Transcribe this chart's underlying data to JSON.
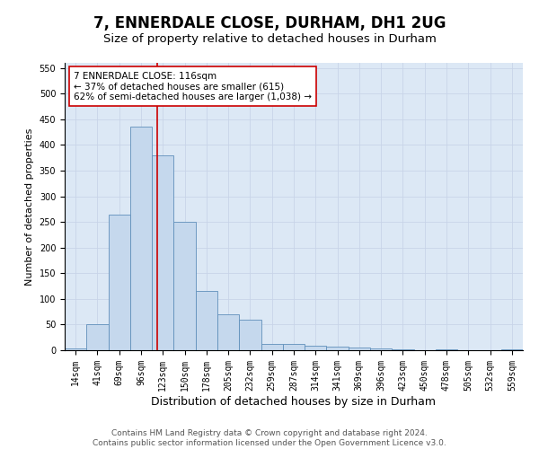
{
  "title1": "7, ENNERDALE CLOSE, DURHAM, DH1 2UG",
  "title2": "Size of property relative to detached houses in Durham",
  "xlabel": "Distribution of detached houses by size in Durham",
  "ylabel": "Number of detached properties",
  "bin_labels": [
    "14sqm",
    "41sqm",
    "69sqm",
    "96sqm",
    "123sqm",
    "150sqm",
    "178sqm",
    "205sqm",
    "232sqm",
    "259sqm",
    "287sqm",
    "314sqm",
    "341sqm",
    "369sqm",
    "396sqm",
    "423sqm",
    "450sqm",
    "478sqm",
    "505sqm",
    "532sqm",
    "559sqm"
  ],
  "bar_heights": [
    3,
    50,
    265,
    435,
    380,
    250,
    115,
    70,
    60,
    13,
    13,
    8,
    7,
    6,
    4,
    2,
    0,
    2,
    0,
    0,
    2
  ],
  "bar_color": "#c5d8ed",
  "bar_edgecolor": "#6090bb",
  "property_value_bar_index": 4,
  "vline_color": "#cc0000",
  "annotation_text": "7 ENNERDALE CLOSE: 116sqm\n← 37% of detached houses are smaller (615)\n62% of semi-detached houses are larger (1,038) →",
  "annotation_box_edgecolor": "#cc0000",
  "annotation_box_facecolor": "#ffffff",
  "ylim": [
    0,
    560
  ],
  "yticks": [
    0,
    50,
    100,
    150,
    200,
    250,
    300,
    350,
    400,
    450,
    500,
    550
  ],
  "grid_color": "#c8d4e8",
  "background_color": "#dce8f5",
  "footer1": "Contains HM Land Registry data © Crown copyright and database right 2024.",
  "footer2": "Contains public sector information licensed under the Open Government Licence v3.0.",
  "title1_fontsize": 12,
  "title2_fontsize": 9.5,
  "xlabel_fontsize": 9,
  "ylabel_fontsize": 8,
  "tick_fontsize": 7,
  "annotation_fontsize": 7.5,
  "footer_fontsize": 6.5
}
